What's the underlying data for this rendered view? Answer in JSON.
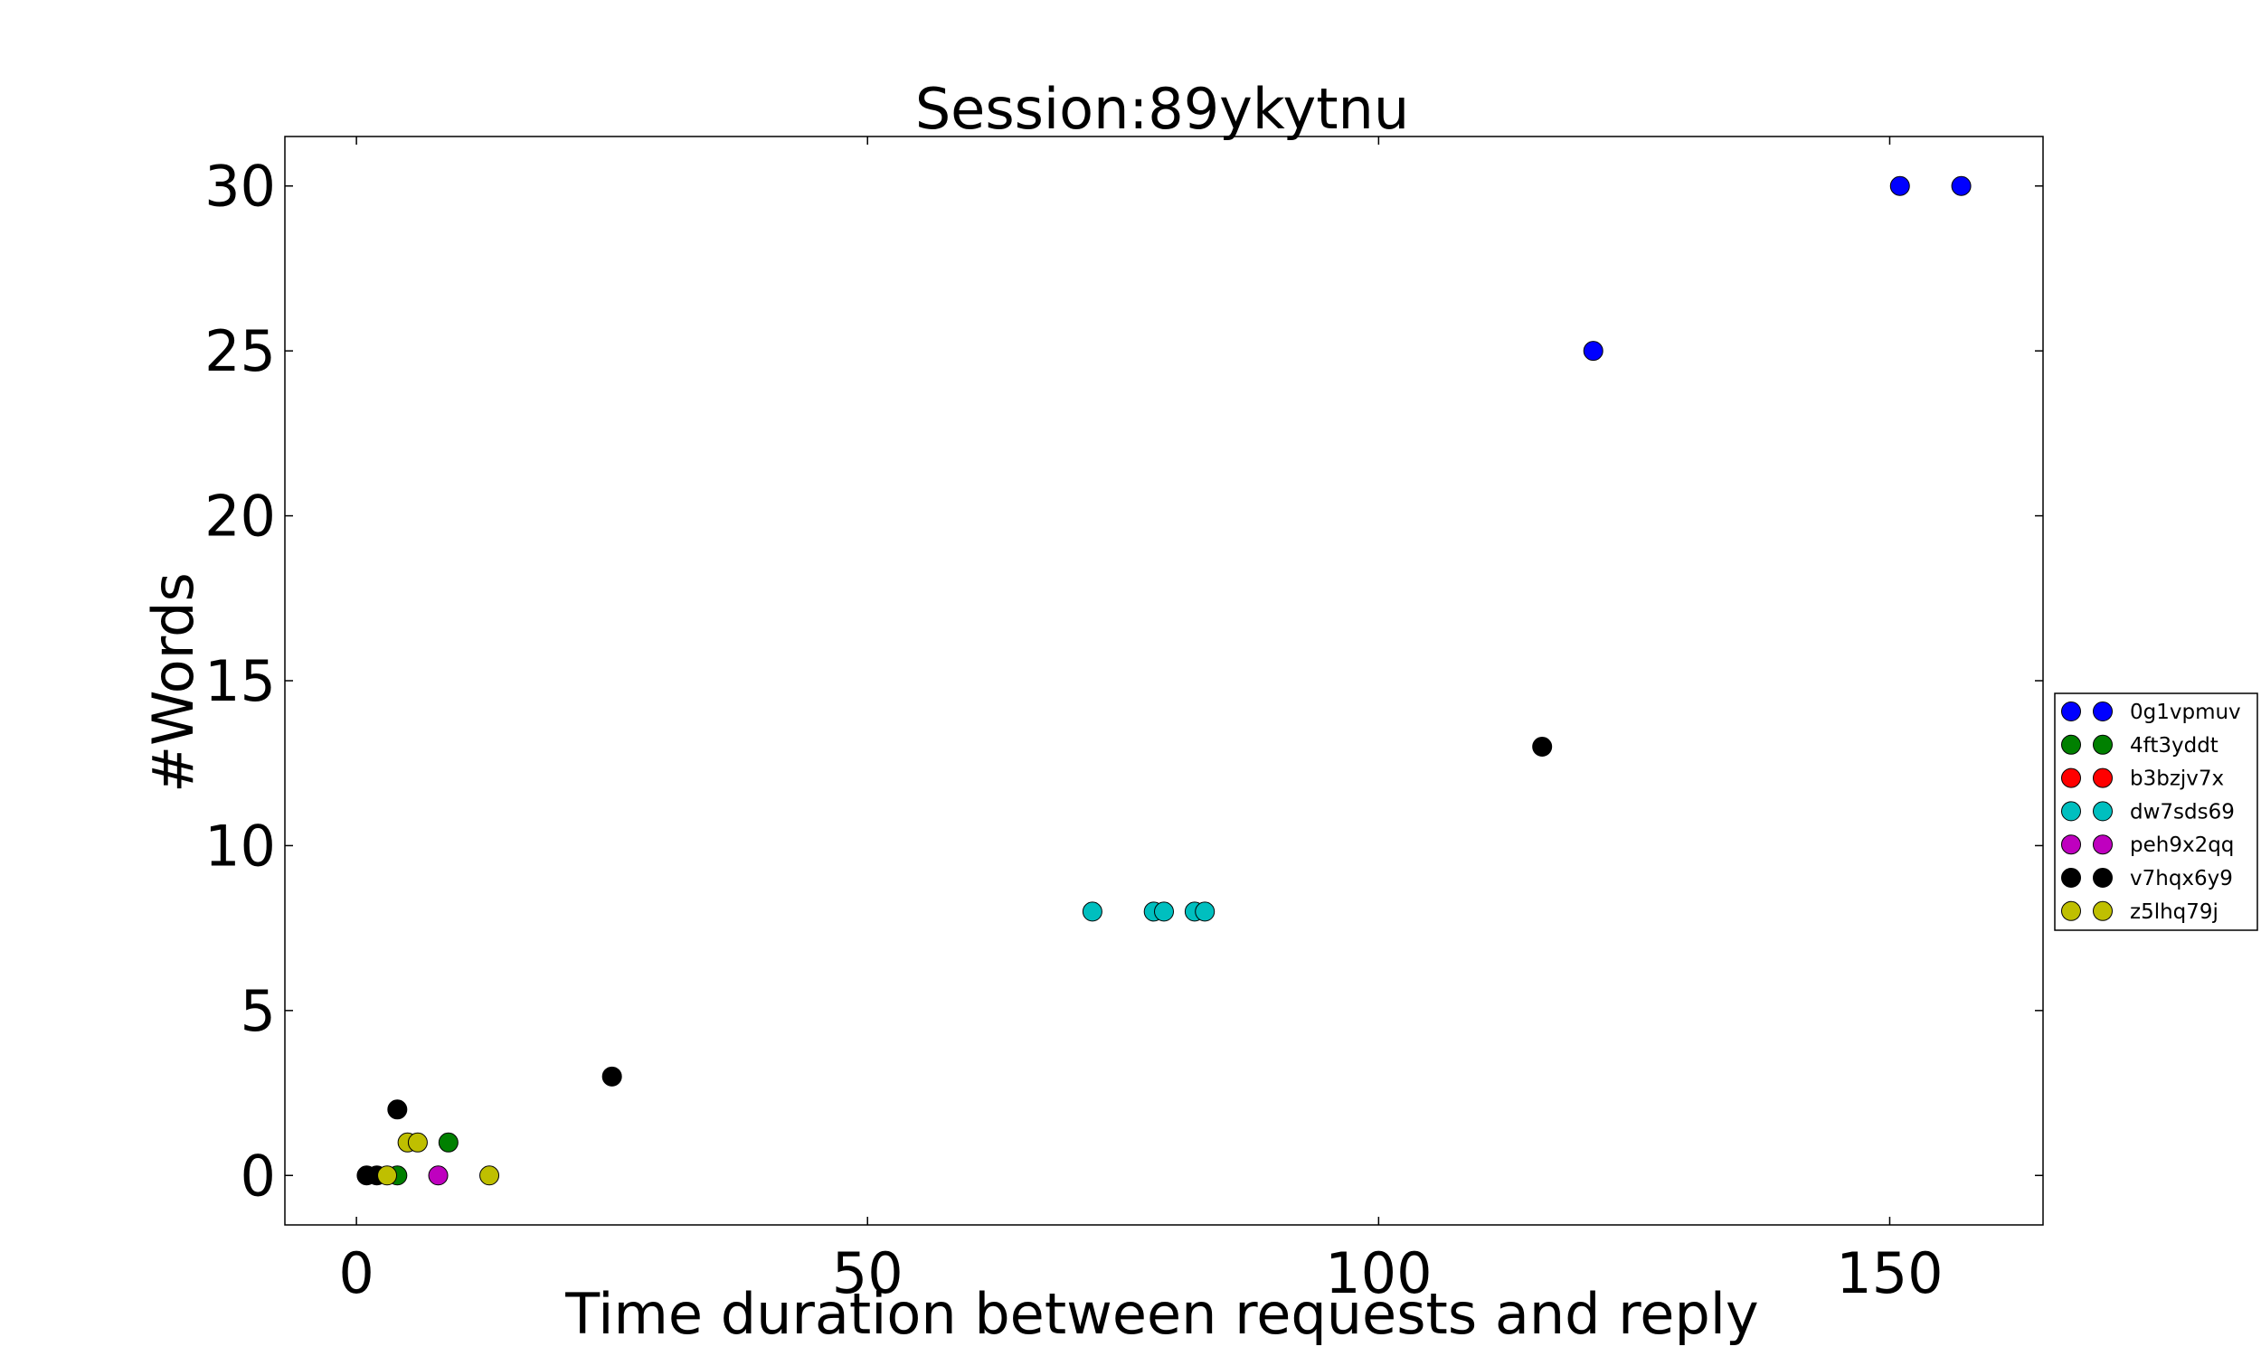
{
  "chart_data": {
    "type": "scatter",
    "title": "Session:89ykytnu",
    "xlabel": "Time duration between requests and reply",
    "ylabel": "#Words",
    "xlim": [
      -7,
      165
    ],
    "ylim": [
      -1.5,
      31.5
    ],
    "xticks": [
      0,
      50,
      100,
      150
    ],
    "yticks": [
      0,
      5,
      10,
      15,
      20,
      25,
      30
    ],
    "grid": false,
    "legend_position": "right",
    "series": [
      {
        "name": "0g1vpmuv",
        "color": "#0000ff",
        "x": [
          121,
          151,
          157
        ],
        "y": [
          25,
          30,
          30
        ]
      },
      {
        "name": "4ft3yddt",
        "color": "#008000",
        "x": [
          4,
          9
        ],
        "y": [
          0,
          1
        ]
      },
      {
        "name": "b3bzjv7x",
        "color": "#ff0000",
        "x": [],
        "y": []
      },
      {
        "name": "dw7sds69",
        "color": "#00bfbf",
        "x": [
          72,
          78,
          79,
          82,
          83
        ],
        "y": [
          8,
          8,
          8,
          8,
          8
        ]
      },
      {
        "name": "peh9x2qq",
        "color": "#bf00bf",
        "x": [
          8
        ],
        "y": [
          0
        ]
      },
      {
        "name": "v7hqx6y9",
        "color": "#000000",
        "x": [
          1,
          2,
          4,
          25,
          116
        ],
        "y": [
          0,
          0,
          2,
          3,
          13
        ]
      },
      {
        "name": "z5lhq79j",
        "color": "#bfbf00",
        "x": [
          3,
          5,
          6,
          13
        ],
        "y": [
          0,
          1,
          1,
          0
        ]
      }
    ]
  }
}
